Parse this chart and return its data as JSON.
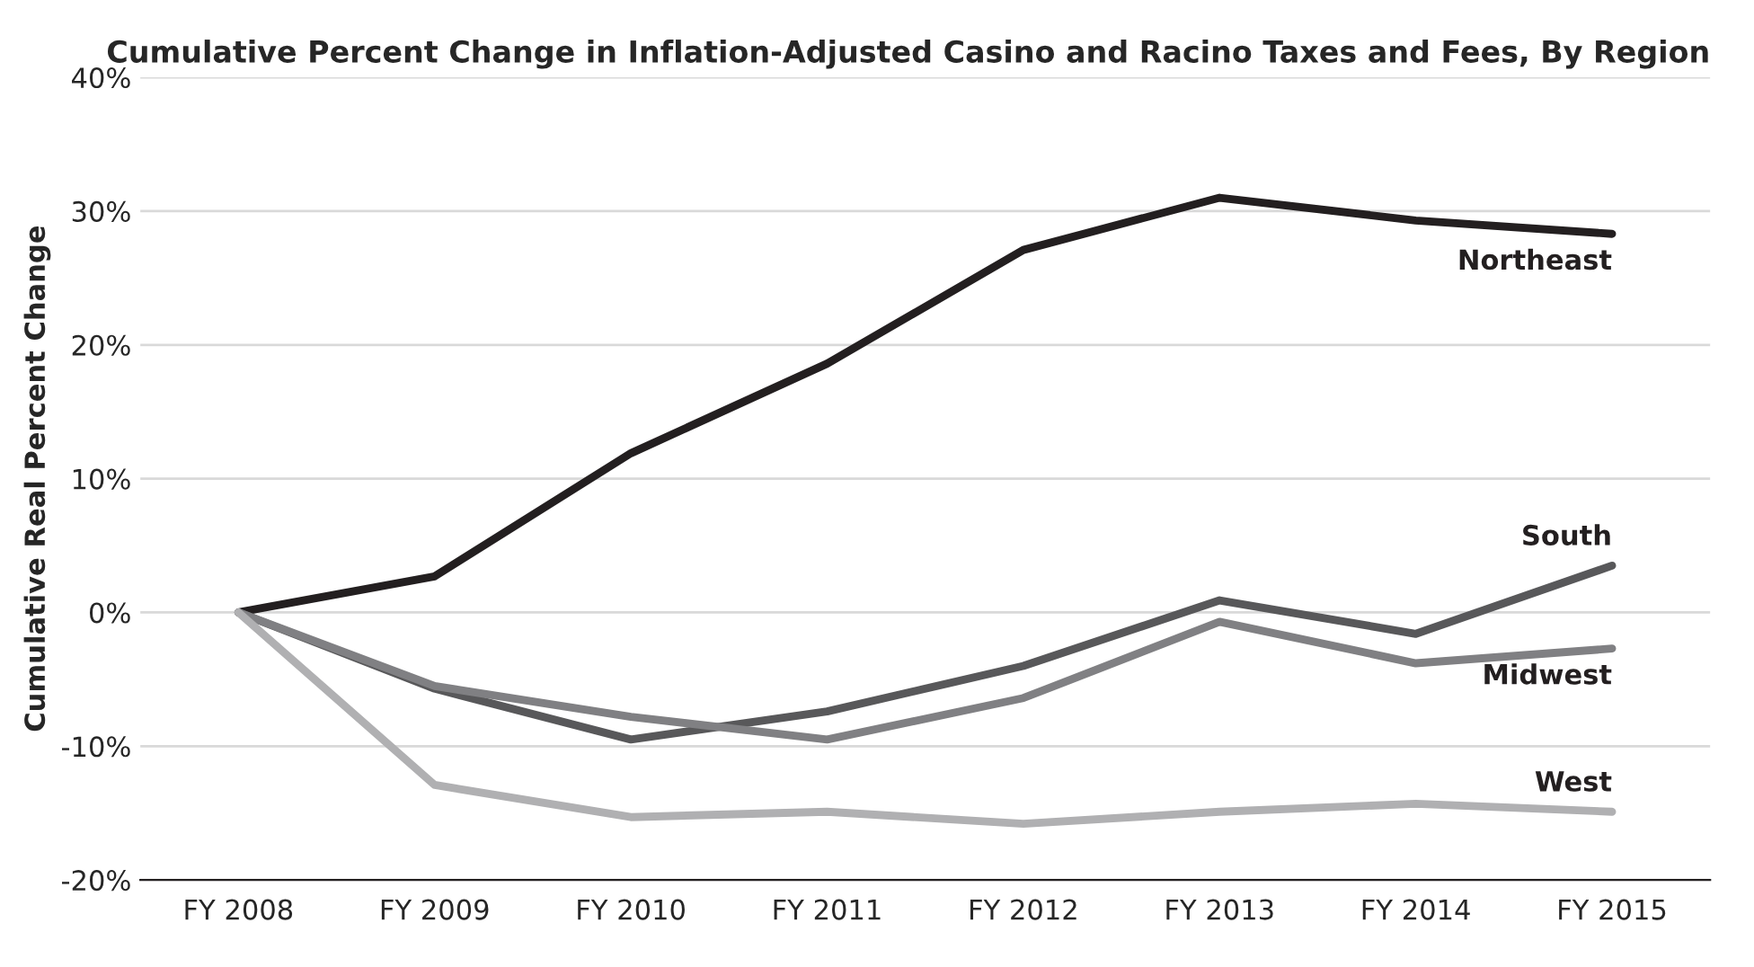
{
  "chart_data": {
    "type": "line",
    "title": "Cumulative Percent Change in Inflation-Adjusted Casino and Racino Taxes and Fees, By Region",
    "ylabel": "Cumulative Real Percent Change",
    "categories": [
      "FY 2008",
      "FY 2009",
      "FY 2010",
      "FY 2011",
      "FY 2012",
      "FY 2013",
      "FY 2014",
      "FY 2015"
    ],
    "series": [
      {
        "name": "Northeast",
        "color": "#231f20",
        "values": [
          0,
          2.7,
          11.9,
          18.6,
          27.1,
          31.0,
          29.3,
          28.3
        ]
      },
      {
        "name": "South",
        "color": "#58585a",
        "values": [
          0,
          -5.7,
          -9.5,
          -7.4,
          -4.0,
          0.9,
          -1.6,
          3.5
        ]
      },
      {
        "name": "Midwest",
        "color": "#808083",
        "values": [
          0,
          -5.5,
          -7.8,
          -9.5,
          -6.4,
          -0.7,
          -3.8,
          -2.7
        ]
      },
      {
        "name": "West",
        "color": "#b0b0b2",
        "values": [
          0,
          -12.9,
          -15.3,
          -14.9,
          -15.8,
          -14.9,
          -14.3,
          -14.9
        ]
      }
    ],
    "ylim": [
      -20,
      40
    ],
    "yticks": [
      {
        "value": -20,
        "label": "-20%"
      },
      {
        "value": -10,
        "label": "-10%"
      },
      {
        "value": 0,
        "label": "0%"
      },
      {
        "value": 10,
        "label": "10%"
      },
      {
        "value": 20,
        "label": "20%"
      },
      {
        "value": 30,
        "label": "30%"
      },
      {
        "value": 40,
        "label": "40%"
      }
    ],
    "grid": "y",
    "legend": false,
    "marker": "none",
    "line_style": "solid"
  }
}
